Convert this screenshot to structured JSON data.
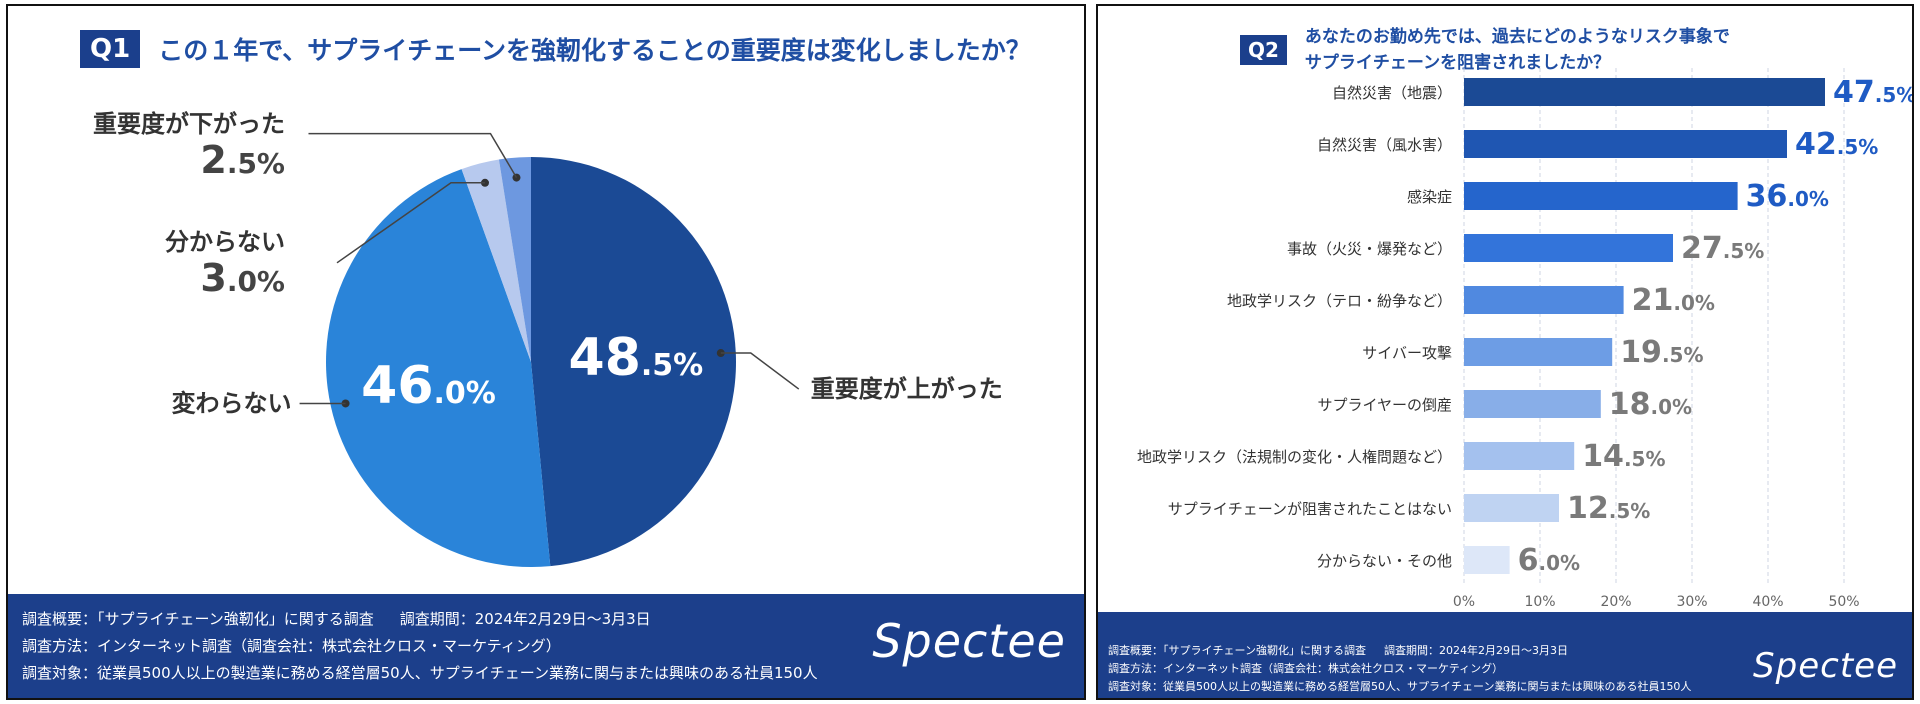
{
  "q1": {
    "badge": "Q1",
    "title": "この１年で、サプライチェーンを強靭化することの重要度は変化しましたか？",
    "footer": {
      "overview_label": "調査概要：「サプライチェーン強靭化」に関する調査",
      "period_label": "調査期間：2024年2月29日〜3月3日",
      "method": "調査方法：インターネット調査（調査会社：株式会社クロス・マーケティング）",
      "target": "調査対象：従業員500人以上の製造業に務める経営層50人、サプライチェーン業務に関与または興味のある社員150人"
    },
    "logo": "Spectee"
  },
  "q2": {
    "badge": "Q2",
    "title_line1": "あなたのお勤め先では、過去にどのようなリスク事象で",
    "title_line2": "サプライチェーンを阻害されましたか？",
    "footer": {
      "overview_label": "調査概要：「サプライチェーン強靭化」に関する調査",
      "period_label": "調査期間：2024年2月29日〜3月3日",
      "method": "調査方法：インターネット調査（調査会社：株式会社クロス・マーケティング）",
      "target": "調査対象：従業員500人以上の製造業に務める経営層50人、サプライチェーン業務に関与または興味のある社員150人"
    },
    "logo": "Spectee"
  },
  "chart_data": [
    {
      "type": "pie",
      "title": "この１年で、サプライチェーンを強靭化することの重要度は変化しましたか？",
      "unit": "%",
      "slices": [
        {
          "label": "重要度が上がった",
          "value": 48.5,
          "color": "#1b4a95"
        },
        {
          "label": "変わらない",
          "value": 46.0,
          "color": "#2a84d9"
        },
        {
          "label": "分からない",
          "value": 3.0,
          "color": "#b7c9ee"
        },
        {
          "label": "重要度が下がった",
          "value": 2.5,
          "color": "#6d98e0"
        }
      ]
    },
    {
      "type": "bar",
      "orientation": "horizontal",
      "title": "あなたのお勤め先では、過去にどのようなリスク事象でサプライチェーンを阻害されましたか？",
      "unit": "%",
      "xlim": [
        0,
        50
      ],
      "xticks": [
        "0%",
        "10%",
        "20%",
        "30%",
        "40%",
        "50%"
      ],
      "grid": true,
      "categories": [
        "自然災害（地震）",
        "自然災害（風水害）",
        "感染症",
        "事故（火災・爆発など）",
        "地政学リスク（テロ・紛争など）",
        "サイバー攻撃",
        "サプライヤーの倒産",
        "地政学リスク（法規制の変化・人権問題など）",
        "サプライチェーンが阻害されたことはない",
        "分からない・その他"
      ],
      "values": [
        47.5,
        42.5,
        36.0,
        27.5,
        21.0,
        19.5,
        18.0,
        14.5,
        12.5,
        6.0
      ],
      "colors": [
        "#1b4a95",
        "#1f56b2",
        "#2565cc",
        "#3374da",
        "#5089e0",
        "#6d9de5",
        "#88aee8",
        "#a4c1ee",
        "#bfd3f2",
        "#dde7f8"
      ],
      "label_colors": [
        "#1f5bc4",
        "#1f5bc4",
        "#1f5bc4",
        "#7a7a7a",
        "#7a7a7a",
        "#7a7a7a",
        "#7a7a7a",
        "#7a7a7a",
        "#7a7a7a",
        "#7a7a7a"
      ]
    }
  ]
}
